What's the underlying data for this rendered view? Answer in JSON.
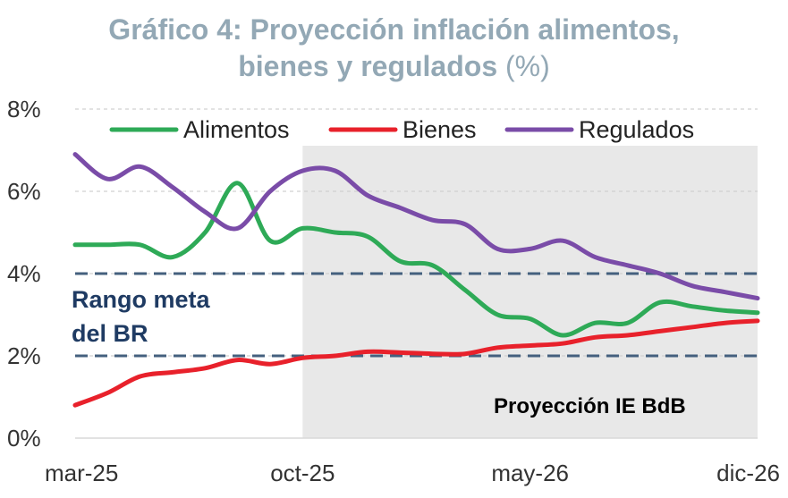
{
  "title_line1": "Gráfico 4: Proyección inflación alimentos,",
  "title_line2": "bienes y regulados",
  "title_unit": "(%)",
  "chart_data": {
    "type": "line",
    "x": [
      "mar-25",
      "abr-25",
      "may-25",
      "jun-25",
      "jul-25",
      "ago-25",
      "sep-25",
      "oct-25",
      "nov-25",
      "dic-25",
      "ene-26",
      "feb-26",
      "mar-26",
      "abr-26",
      "may-26",
      "jun-26",
      "jul-26",
      "ago-26",
      "sep-26",
      "oct-26",
      "nov-26",
      "dic-26"
    ],
    "x_tick_labels": [
      "mar-25",
      "oct-25",
      "may-26",
      "dic-26"
    ],
    "y_tick_labels": [
      "0%",
      "2%",
      "4%",
      "6%",
      "8%"
    ],
    "ylim": [
      0,
      8
    ],
    "series": [
      {
        "name": "Alimentos",
        "color": "#2eaa57",
        "values": [
          4.7,
          4.7,
          4.7,
          4.4,
          5.0,
          6.2,
          4.8,
          5.1,
          5.0,
          4.9,
          4.3,
          4.2,
          3.6,
          3.0,
          2.9,
          2.5,
          2.8,
          2.8,
          3.3,
          3.2,
          3.1,
          3.05
        ]
      },
      {
        "name": "Bienes",
        "color": "#e8212b",
        "values": [
          0.8,
          1.1,
          1.5,
          1.6,
          1.7,
          1.9,
          1.8,
          1.95,
          2.0,
          2.1,
          2.08,
          2.05,
          2.05,
          2.2,
          2.25,
          2.3,
          2.45,
          2.5,
          2.6,
          2.7,
          2.8,
          2.85
        ]
      },
      {
        "name": "Regulados",
        "color": "#7a4ca8",
        "values": [
          6.9,
          6.3,
          6.6,
          6.1,
          5.5,
          5.1,
          6.0,
          6.5,
          6.5,
          5.9,
          5.6,
          5.3,
          5.2,
          4.6,
          4.6,
          4.8,
          4.4,
          4.2,
          4.0,
          3.7,
          3.55,
          3.4
        ]
      }
    ],
    "target_range": {
      "low": 2,
      "high": 4,
      "label_line1": "Rango meta",
      "label_line2": "del BR",
      "color": "#44607e"
    },
    "projection": {
      "start": "oct-25",
      "label": "Proyección IE BdB",
      "shade": "#e8e8e8"
    },
    "legend": "top",
    "grid": "horizontal dashed"
  }
}
